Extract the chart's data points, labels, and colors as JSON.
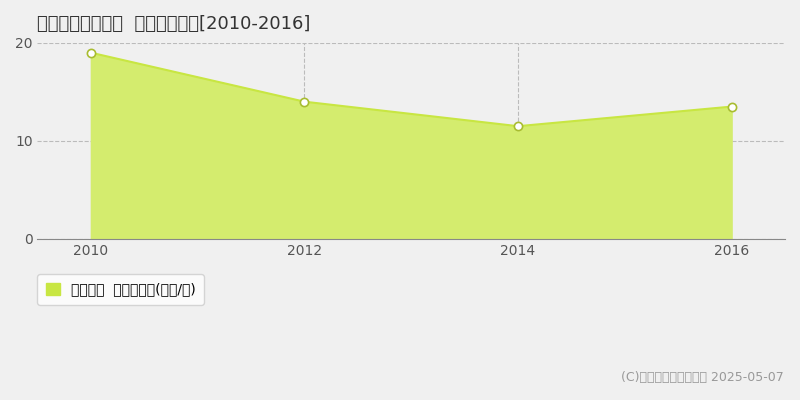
{
  "title": "生駒郡平群町福貴  土地価格推移[2010-2016]",
  "years": [
    2010,
    2012,
    2014,
    2016
  ],
  "values": [
    19.0,
    14.0,
    11.5,
    13.5
  ],
  "line_color": "#c8e642",
  "fill_color": "#d4ec6e",
  "marker_color": "#ffffff",
  "marker_edge_color": "#a8bc30",
  "xlim": [
    2009.5,
    2016.5
  ],
  "ylim": [
    0,
    20
  ],
  "yticks": [
    0,
    10,
    20
  ],
  "xticks": [
    2010,
    2012,
    2014,
    2016
  ],
  "grid_color": "#bbbbbb",
  "background_color": "#f0f0f0",
  "plot_bg_color": "#f0f0f0",
  "legend_label": "土地価格  平均坪単価(万円/坪)",
  "copyright_text": "(C)土地価格ドットコム 2025-05-07",
  "title_fontsize": 13,
  "tick_fontsize": 10,
  "legend_fontsize": 10,
  "copyright_fontsize": 9
}
